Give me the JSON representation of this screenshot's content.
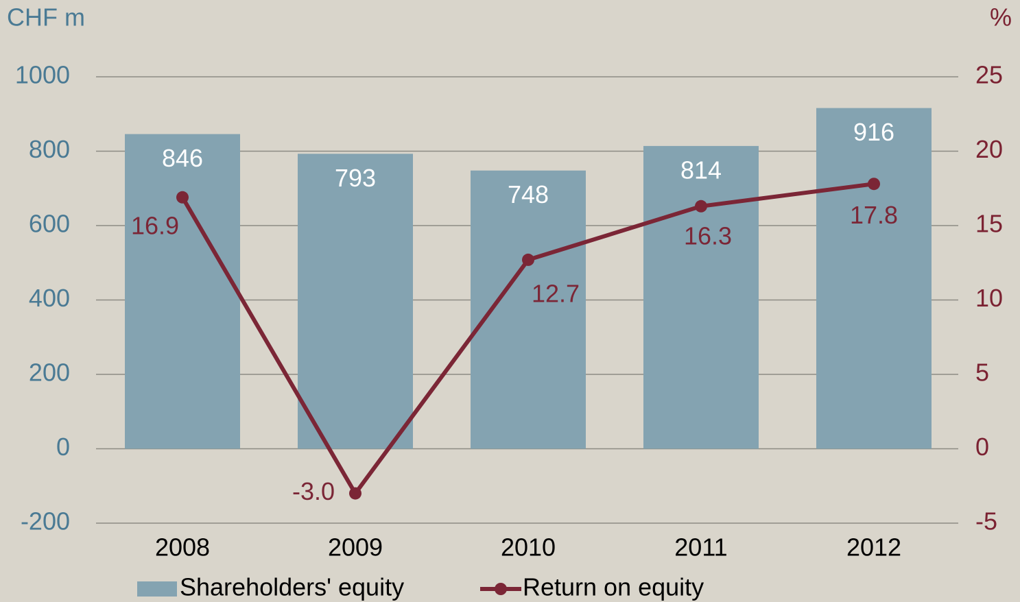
{
  "chart_data": {
    "type": "bar+line",
    "y_label": "CHF m",
    "y2_label": "%",
    "categories": [
      "2008",
      "2009",
      "2010",
      "2011",
      "2012"
    ],
    "series": [
      {
        "name": "Shareholders' equity",
        "type": "bar",
        "axis": "y",
        "color": "#84a3b1",
        "values": [
          846,
          793,
          748,
          814,
          916
        ]
      },
      {
        "name": "Return on equity",
        "type": "line",
        "axis": "y2",
        "color": "#7b2636",
        "values": [
          16.9,
          -3.0,
          12.7,
          16.3,
          17.8
        ],
        "value_labels": [
          "16.9",
          "-3.0",
          "12.7",
          "16.3",
          "17.8"
        ]
      }
    ],
    "ylim": [
      -200,
      1000
    ],
    "yticks": [
      -200,
      0,
      200,
      400,
      600,
      800,
      1000
    ],
    "y2lim": [
      -5,
      25
    ],
    "y2ticks": [
      -5,
      0,
      5,
      10,
      15,
      20,
      25
    ],
    "grid": true,
    "legend": "bottom"
  }
}
